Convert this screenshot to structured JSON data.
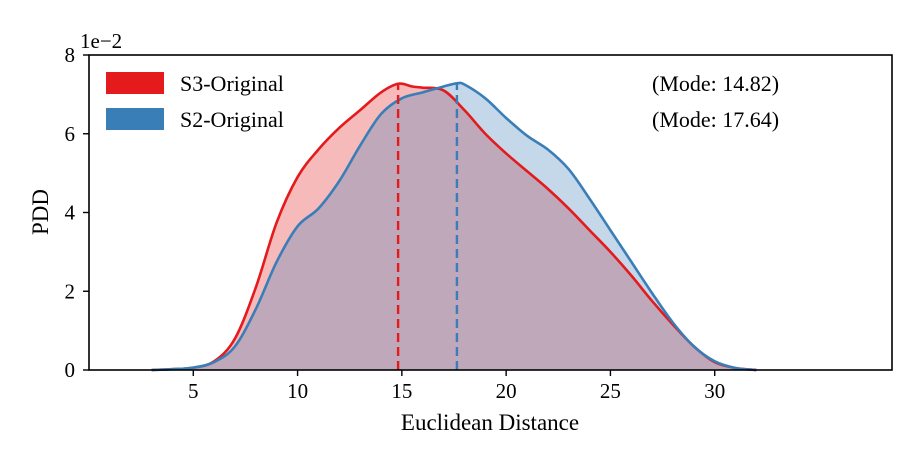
{
  "chart_data": {
    "type": "area",
    "title": "",
    "xlabel": "Euclidean Distance",
    "ylabel": "PDD",
    "y_scale_label": "1e−2",
    "xlim": [
      0,
      38.5
    ],
    "ylim": [
      0,
      8
    ],
    "x_ticks": [
      5,
      10,
      15,
      20,
      25,
      30
    ],
    "y_ticks": [
      0,
      2,
      4,
      6,
      8
    ],
    "x_tick_labels": [
      "5",
      "10",
      "15",
      "20",
      "25",
      "30"
    ],
    "y_tick_labels": [
      "0",
      "2",
      "4",
      "6",
      "8"
    ],
    "legend_position": "top-left",
    "series": [
      {
        "name": "S3-Original",
        "color": "#e41a1c",
        "fill_color": "#f4b2b3",
        "mode": 14.82,
        "mode_label": "(Mode: 14.82)",
        "points": [
          [
            3,
            0
          ],
          [
            4,
            0.02
          ],
          [
            5,
            0.06
          ],
          [
            6,
            0.22
          ],
          [
            7,
            0.8
          ],
          [
            8,
            2.1
          ],
          [
            9,
            3.75
          ],
          [
            10,
            4.9
          ],
          [
            11,
            5.6
          ],
          [
            12,
            6.15
          ],
          [
            13,
            6.6
          ],
          [
            14,
            7.05
          ],
          [
            14.82,
            7.27
          ],
          [
            15.5,
            7.2
          ],
          [
            16,
            7.17
          ],
          [
            17,
            7.1
          ],
          [
            18,
            6.6
          ],
          [
            19,
            6.0
          ],
          [
            20,
            5.5
          ],
          [
            21,
            5.05
          ],
          [
            22,
            4.6
          ],
          [
            23,
            4.1
          ],
          [
            24,
            3.55
          ],
          [
            25,
            3.0
          ],
          [
            26,
            2.4
          ],
          [
            27,
            1.75
          ],
          [
            28,
            1.15
          ],
          [
            29,
            0.6
          ],
          [
            30,
            0.2
          ],
          [
            31,
            0.05
          ],
          [
            32,
            0
          ]
        ]
      },
      {
        "name": "S2-Original",
        "color": "#3a7eb8",
        "fill_color": "#b4cce2",
        "mode": 17.64,
        "mode_label": "(Mode: 17.64)",
        "points": [
          [
            3,
            0
          ],
          [
            4,
            0.02
          ],
          [
            5,
            0.06
          ],
          [
            6,
            0.2
          ],
          [
            7,
            0.6
          ],
          [
            8,
            1.55
          ],
          [
            9,
            2.75
          ],
          [
            10,
            3.65
          ],
          [
            11,
            4.1
          ],
          [
            12,
            4.8
          ],
          [
            13,
            5.7
          ],
          [
            14,
            6.5
          ],
          [
            15,
            6.9
          ],
          [
            16,
            7.05
          ],
          [
            17,
            7.2
          ],
          [
            17.64,
            7.28
          ],
          [
            18,
            7.25
          ],
          [
            19,
            6.9
          ],
          [
            20,
            6.4
          ],
          [
            21,
            5.95
          ],
          [
            22,
            5.6
          ],
          [
            23,
            5.1
          ],
          [
            24,
            4.35
          ],
          [
            25,
            3.55
          ],
          [
            26,
            2.75
          ],
          [
            27,
            1.95
          ],
          [
            28,
            1.2
          ],
          [
            29,
            0.6
          ],
          [
            30,
            0.22
          ],
          [
            31,
            0.05
          ],
          [
            32,
            0
          ]
        ]
      }
    ]
  }
}
